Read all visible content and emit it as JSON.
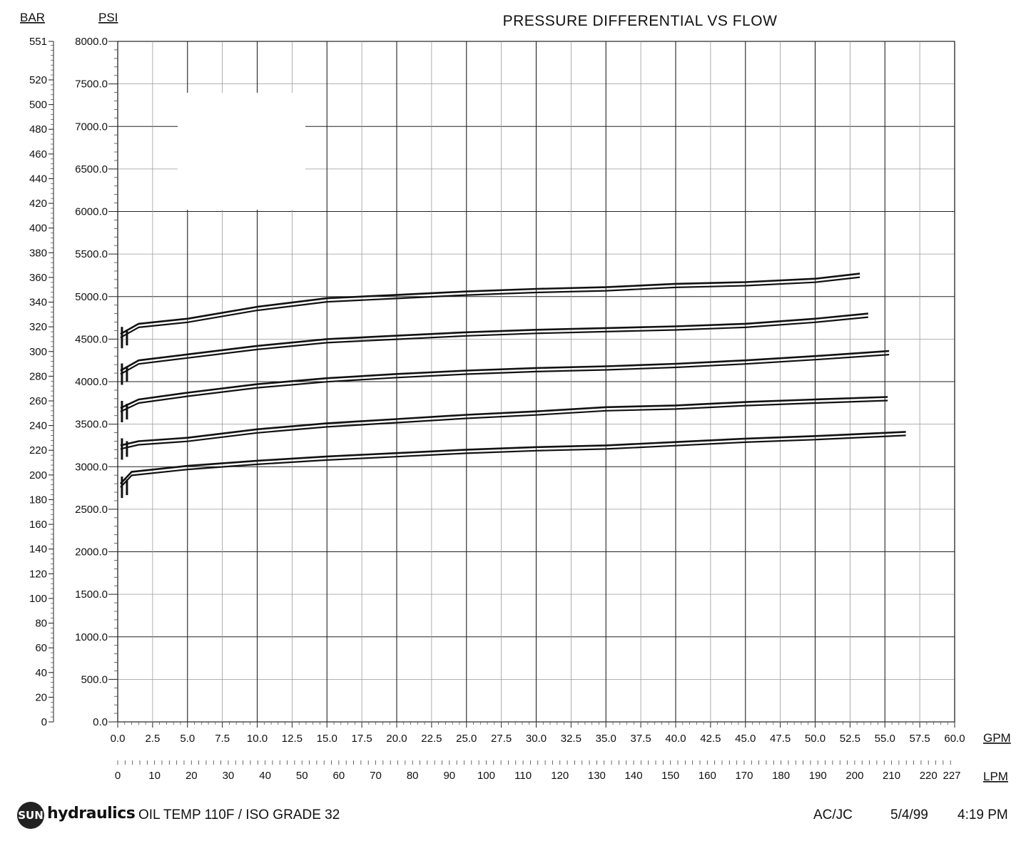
{
  "chart_data": {
    "type": "line",
    "title": "PRESSURE DIFFERENTIAL VS FLOW",
    "left_unit_label": "BAR",
    "primary_y_unit_label": "PSI",
    "x_unit_label": "GPM",
    "secondary_x_unit_label": "LPM",
    "ylim": [
      0,
      8000
    ],
    "xlim": [
      0,
      60
    ],
    "y_ticks": [
      "0.0",
      "500.0",
      "1000.0",
      "1500.0",
      "2000.0",
      "2500.0",
      "3000.0",
      "3500.0",
      "4000.0",
      "4500.0",
      "5000.0",
      "5500.0",
      "6000.0",
      "6500.0",
      "7000.0",
      "7500.0",
      "8000.0"
    ],
    "x_ticks": [
      "0.0",
      "2.5",
      "5.0",
      "7.5",
      "10.0",
      "12.5",
      "15.0",
      "17.5",
      "20.0",
      "22.5",
      "25.0",
      "27.5",
      "30.0",
      "32.5",
      "35.0",
      "37.5",
      "40.0",
      "42.5",
      "45.0",
      "47.5",
      "50.0",
      "52.5",
      "55.0",
      "57.5",
      "60.0"
    ],
    "bar_ticks": [
      "0",
      "20",
      "40",
      "60",
      "80",
      "100",
      "120",
      "140",
      "160",
      "180",
      "200",
      "220",
      "240",
      "260",
      "280",
      "300",
      "320",
      "340",
      "360",
      "380",
      "400",
      "420",
      "440",
      "460",
      "480",
      "500",
      "520",
      "551"
    ],
    "lpm_ticks": [
      "0",
      "10",
      "20",
      "30",
      "40",
      "50",
      "60",
      "70",
      "80",
      "90",
      "100",
      "110",
      "120",
      "130",
      "140",
      "150",
      "160",
      "170",
      "180",
      "190",
      "200",
      "210",
      "220",
      "227"
    ],
    "grid": true,
    "series": [
      {
        "values": [
          [
            0.2,
            4560
          ],
          [
            1.5,
            4680
          ],
          [
            5,
            4740
          ],
          [
            10,
            4880
          ],
          [
            15,
            4980
          ],
          [
            20,
            5020
          ],
          [
            25,
            5060
          ],
          [
            30,
            5090
          ],
          [
            35,
            5110
          ],
          [
            40,
            5150
          ],
          [
            45,
            5170
          ],
          [
            50,
            5210
          ],
          [
            53.2,
            5270
          ]
        ]
      },
      {
        "values": [
          [
            0.2,
            4130
          ],
          [
            1.5,
            4250
          ],
          [
            5,
            4320
          ],
          [
            10,
            4420
          ],
          [
            15,
            4500
          ],
          [
            20,
            4540
          ],
          [
            25,
            4580
          ],
          [
            30,
            4610
          ],
          [
            35,
            4630
          ],
          [
            40,
            4650
          ],
          [
            45,
            4680
          ],
          [
            50,
            4740
          ],
          [
            53.8,
            4800
          ]
        ]
      },
      {
        "values": [
          [
            0.2,
            3690
          ],
          [
            1.5,
            3790
          ],
          [
            5,
            3870
          ],
          [
            10,
            3970
          ],
          [
            15,
            4040
          ],
          [
            20,
            4090
          ],
          [
            25,
            4130
          ],
          [
            30,
            4160
          ],
          [
            35,
            4180
          ],
          [
            40,
            4210
          ],
          [
            45,
            4250
          ],
          [
            50,
            4300
          ],
          [
            55.3,
            4360
          ]
        ]
      },
      {
        "values": [
          [
            0.2,
            3250
          ],
          [
            1.5,
            3300
          ],
          [
            5,
            3340
          ],
          [
            10,
            3440
          ],
          [
            15,
            3510
          ],
          [
            20,
            3560
          ],
          [
            25,
            3610
          ],
          [
            30,
            3650
          ],
          [
            35,
            3700
          ],
          [
            40,
            3720
          ],
          [
            45,
            3760
          ],
          [
            50,
            3790
          ],
          [
            55.2,
            3820
          ]
        ]
      },
      {
        "values": [
          [
            0.2,
            2800
          ],
          [
            1,
            2940
          ],
          [
            5,
            3010
          ],
          [
            10,
            3070
          ],
          [
            15,
            3120
          ],
          [
            20,
            3160
          ],
          [
            25,
            3200
          ],
          [
            30,
            3230
          ],
          [
            35,
            3250
          ],
          [
            40,
            3290
          ],
          [
            45,
            3330
          ],
          [
            50,
            3360
          ],
          [
            56.5,
            3410
          ]
        ]
      }
    ]
  },
  "footer": {
    "logo_text": "SUN",
    "brand": "hydraulics",
    "conditions": "OIL TEMP 110F / ISO GRADE 32",
    "initials": "AC/JC",
    "date": "5/4/99",
    "time": "4:19 PM"
  }
}
